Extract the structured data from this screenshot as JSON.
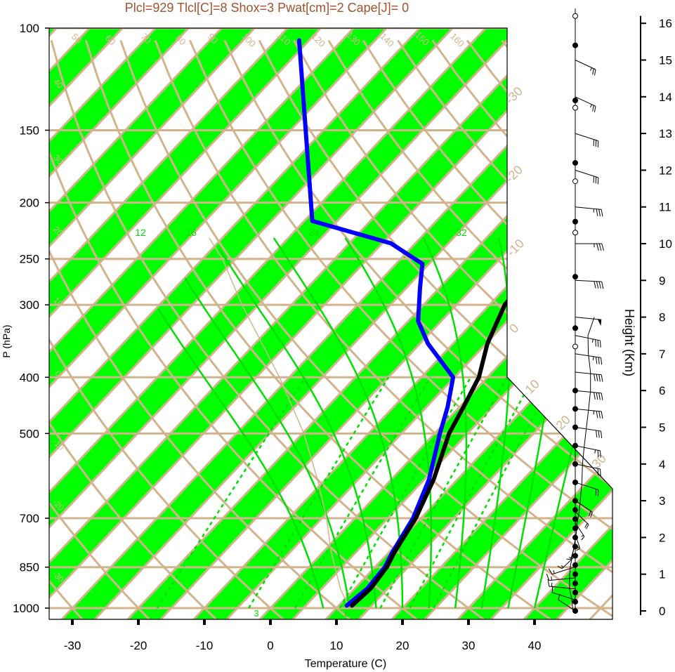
{
  "chart_data": {
    "type": "skew-t",
    "title": "Plcl=929 Tlcl[C]=8 Shox=3 Pwat[cm]=2 Cape[J]= 0",
    "xlabel": "Temperature (C)",
    "ylabel": "P (hPa)",
    "y2label": "Height (Km)",
    "x_ticks": [
      -30,
      -20,
      -10,
      0,
      10,
      20,
      30,
      40
    ],
    "p_ticks": [
      100,
      150,
      200,
      250,
      300,
      400,
      500,
      700,
      850,
      1000
    ],
    "height_ticks": [
      0,
      1,
      2,
      3,
      4,
      5,
      6,
      7,
      8,
      9,
      10,
      11,
      12,
      13,
      14,
      15,
      16
    ],
    "isotherm_labels": [
      {
        "t": -30,
        "text": "-30"
      },
      {
        "t": -20,
        "text": "-20"
      },
      {
        "t": -10,
        "text": "-10"
      },
      {
        "t": 0,
        "text": "0"
      },
      {
        "t": 10,
        "text": "10"
      },
      {
        "t": 20,
        "text": "20"
      },
      {
        "t": 30,
        "text": "30"
      }
    ],
    "dry_adiabat_labels": [
      "50",
      "60",
      "70",
      "80",
      "90",
      "100",
      "110",
      "120",
      "130",
      "140",
      "150",
      "160"
    ],
    "moist_adiabat_labels": [
      "12",
      "16",
      "24",
      "32"
    ],
    "mixing_ratio_labels": [
      "3",
      "8"
    ],
    "left_side_labels": [
      "40",
      "30",
      "20",
      "10",
      "0",
      "-10",
      "-20",
      "-30"
    ],
    "temperature": {
      "name": "",
      "color": "#000000",
      "points": [
        [
          990,
          12.0
        ],
        [
          925,
          12.4
        ],
        [
          850,
          11.8
        ],
        [
          800,
          10.8
        ],
        [
          700,
          9.2
        ],
        [
          600,
          6.4
        ],
        [
          500,
          2.2
        ],
        [
          450,
          0.6
        ],
        [
          400,
          -1.3
        ],
        [
          350,
          -4.8
        ],
        [
          300,
          -7.7
        ],
        [
          270,
          -8.0
        ],
        [
          250,
          -7.4
        ],
        [
          230,
          -5.3
        ],
        [
          200,
          -2.5
        ],
        [
          180,
          -3.3
        ],
        [
          150,
          -4.0
        ],
        [
          130,
          -5.2
        ],
        [
          110,
          -3.7
        ],
        [
          105,
          -2.8
        ]
      ]
    },
    "dewpoint": {
      "name": "",
      "color": "#0000ff",
      "points": [
        [
          990,
          11.2
        ],
        [
          925,
          11.9
        ],
        [
          850,
          11.5
        ],
        [
          800,
          10.5
        ],
        [
          700,
          8.8
        ],
        [
          600,
          5.7
        ],
        [
          500,
          0.8
        ],
        [
          450,
          -1.8
        ],
        [
          400,
          -5.2
        ],
        [
          350,
          -13.8
        ],
        [
          320,
          -18.5
        ],
        [
          280,
          -23.0
        ],
        [
          255,
          -26.0
        ],
        [
          235,
          -33.7
        ],
        [
          215,
          -48.8
        ],
        [
          105,
          -76.5
        ]
      ]
    },
    "parcel": {
      "name": "",
      "color": "#d2b48c",
      "points": [
        [
          1000,
          12.0
        ],
        [
          929,
          8.0
        ],
        [
          800,
          1.2
        ],
        [
          700,
          -4.3
        ],
        [
          600,
          -11.2
        ],
        [
          500,
          -19.8
        ],
        [
          400,
          -31.5
        ],
        [
          300,
          -47.5
        ],
        [
          250,
          -57.0
        ],
        [
          230,
          -62.0
        ]
      ]
    },
    "wind_barbs": [
      {
        "km": 0.0,
        "spd": 10,
        "dir": 140
      },
      {
        "km": 0.3,
        "spd": 10,
        "dir": 120
      },
      {
        "km": 0.6,
        "spd": 15,
        "dir": 100
      },
      {
        "km": 0.9,
        "spd": 15,
        "dir": 80
      },
      {
        "km": 1.2,
        "spd": 15,
        "dir": 60
      },
      {
        "km": 1.5,
        "spd": 15,
        "dir": 30
      },
      {
        "km": 1.8,
        "spd": 15,
        "dir": 10
      },
      {
        "km": 2.1,
        "spd": 15,
        "dir": 350
      },
      {
        "km": 2.4,
        "spd": 15,
        "dir": 340
      },
      {
        "km": 2.7,
        "spd": 20,
        "dir": 330
      },
      {
        "km": 3.0,
        "spd": 20,
        "dir": 320
      },
      {
        "km": 3.5,
        "spd": 20,
        "dir": 300
      },
      {
        "km": 4.0,
        "spd": 20,
        "dir": 290
      },
      {
        "km": 4.5,
        "spd": 25,
        "dir": 290
      },
      {
        "km": 5.0,
        "spd": 30,
        "dir": 285
      },
      {
        "km": 5.5,
        "spd": 35,
        "dir": 280
      },
      {
        "km": 6.0,
        "spd": 40,
        "dir": 280
      },
      {
        "km": 6.5,
        "spd": 40,
        "dir": 280
      },
      {
        "km": 7.0,
        "spd": 35,
        "dir": 285
      },
      {
        "km": 7.5,
        "spd": 35,
        "dir": 290
      },
      {
        "km": 8.0,
        "spd": 50,
        "dir": 280
      },
      {
        "km": 9.0,
        "spd": 40,
        "dir": 275
      },
      {
        "km": 10.0,
        "spd": 35,
        "dir": 270
      },
      {
        "km": 11.0,
        "spd": 35,
        "dir": 280
      },
      {
        "km": 12.0,
        "spd": 30,
        "dir": 300
      },
      {
        "km": 13.0,
        "spd": 30,
        "dir": 300
      },
      {
        "km": 14.0,
        "spd": 25,
        "dir": 310
      },
      {
        "km": 15.0,
        "spd": 25,
        "dir": 310
      }
    ],
    "filled_dots_km": [
      0,
      0.25,
      0.5,
      0.75,
      1.0,
      1.25,
      1.5,
      1.75,
      2.0,
      2.25,
      2.5,
      2.75,
      3.0,
      3.5,
      4.0,
      4.5,
      5.0,
      5.5,
      6.0,
      7.7,
      9.1,
      10.6,
      12.2,
      13.9,
      15.4
    ],
    "open_dots_km": [
      7.2,
      10.3,
      11.7,
      13.7,
      16.2
    ],
    "colors": {
      "band": "#00ff00",
      "grid": "#d2b48c",
      "moist": "#00e000",
      "title": "#a0522d"
    }
  }
}
